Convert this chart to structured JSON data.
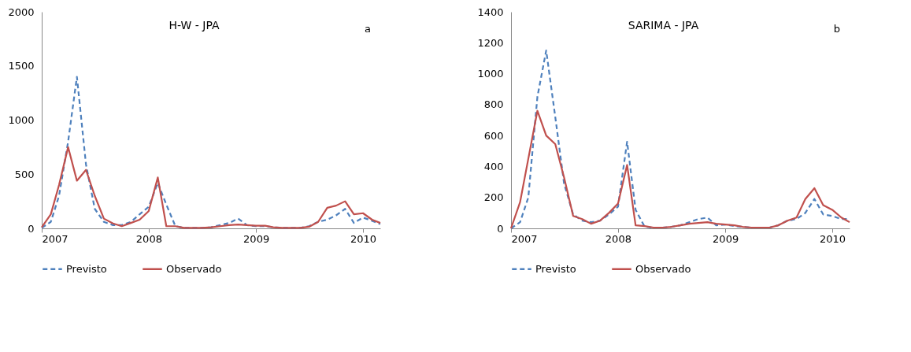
{
  "chart_data": [
    {
      "type": "line",
      "title": "H-W   - JPA",
      "annotations": [
        "a"
      ],
      "x": [
        "2007-01",
        "2007-02",
        "2007-03",
        "2007-04",
        "2007-05",
        "2007-06",
        "2007-07",
        "2007-08",
        "2007-09",
        "2007-10",
        "2007-11",
        "2007-12",
        "2008-01",
        "2008-02",
        "2008-03",
        "2008-04",
        "2008-05",
        "2008-06",
        "2008-07",
        "2008-08",
        "2008-09",
        "2008-10",
        "2008-11",
        "2008-12",
        "2009-01",
        "2009-02",
        "2009-03",
        "2009-04",
        "2009-05",
        "2009-06",
        "2009-07",
        "2009-08",
        "2009-09",
        "2009-10",
        "2009-11",
        "2009-12",
        "2010-01",
        "2010-02",
        "2010-03"
      ],
      "series": [
        {
          "name": "Previsto",
          "color": "#4f81bd",
          "line_style": "dashed",
          "values": [
            5,
            60,
            300,
            800,
            1400,
            590,
            180,
            60,
            30,
            30,
            60,
            130,
            200,
            420,
            220,
            20,
            5,
            5,
            5,
            10,
            30,
            50,
            90,
            30,
            20,
            20,
            10,
            5,
            5,
            5,
            20,
            60,
            80,
            120,
            180,
            50,
            100,
            70,
            40
          ]
        },
        {
          "name": "Observado",
          "color": "#c0504d",
          "line_style": "solid",
          "values": [
            10,
            130,
            400,
            750,
            440,
            540,
            300,
            90,
            45,
            20,
            50,
            80,
            160,
            470,
            20,
            20,
            5,
            5,
            5,
            10,
            20,
            30,
            35,
            30,
            25,
            25,
            10,
            5,
            5,
            5,
            15,
            60,
            190,
            210,
            250,
            130,
            140,
            80,
            50
          ]
        }
      ],
      "xlim": [
        "2007-01",
        "2010-03"
      ],
      "xticks": [
        "2007",
        "2008",
        "2009",
        "2010"
      ],
      "ylim": [
        0,
        2000
      ],
      "yticks": [
        0,
        500,
        1000,
        1500,
        2000
      ],
      "grid": false,
      "legend": "bottom"
    },
    {
      "type": "line",
      "title": "SARIMA - JPA",
      "annotations": [
        "b"
      ],
      "x": [
        "2007-01",
        "2007-02",
        "2007-03",
        "2007-04",
        "2007-05",
        "2007-06",
        "2007-07",
        "2007-08",
        "2007-09",
        "2007-10",
        "2007-11",
        "2007-12",
        "2008-01",
        "2008-02",
        "2008-03",
        "2008-04",
        "2008-05",
        "2008-06",
        "2008-07",
        "2008-08",
        "2008-09",
        "2008-10",
        "2008-11",
        "2008-12",
        "2009-01",
        "2009-02",
        "2009-03",
        "2009-04",
        "2009-05",
        "2009-06",
        "2009-07",
        "2009-08",
        "2009-09",
        "2009-10",
        "2009-11",
        "2009-12",
        "2010-01",
        "2010-02",
        "2010-03"
      ],
      "series": [
        {
          "name": "Previsto",
          "color": "#4f81bd",
          "line_style": "dashed",
          "values": [
            0,
            40,
            200,
            850,
            1150,
            720,
            290,
            90,
            50,
            40,
            50,
            90,
            140,
            560,
            120,
            10,
            5,
            5,
            10,
            20,
            40,
            60,
            70,
            20,
            25,
            15,
            10,
            5,
            5,
            5,
            20,
            50,
            60,
            100,
            190,
            90,
            80,
            60,
            60
          ]
        },
        {
          "name": "Observado",
          "color": "#c0504d",
          "line_style": "solid",
          "values": [
            0,
            170,
            450,
            760,
            600,
            545,
            330,
            80,
            60,
            30,
            50,
            100,
            160,
            410,
            20,
            15,
            5,
            5,
            10,
            20,
            30,
            35,
            40,
            30,
            25,
            20,
            10,
            5,
            5,
            5,
            20,
            50,
            70,
            190,
            260,
            150,
            120,
            70,
            40
          ]
        }
      ],
      "xlim": [
        "2007-01",
        "2010-03"
      ],
      "xticks": [
        "2007",
        "2008",
        "2009",
        "2010"
      ],
      "ylim": [
        0,
        1400
      ],
      "yticks": [
        0,
        200,
        400,
        600,
        800,
        1000,
        1200,
        1400
      ],
      "grid": false,
      "legend": "bottom"
    }
  ]
}
